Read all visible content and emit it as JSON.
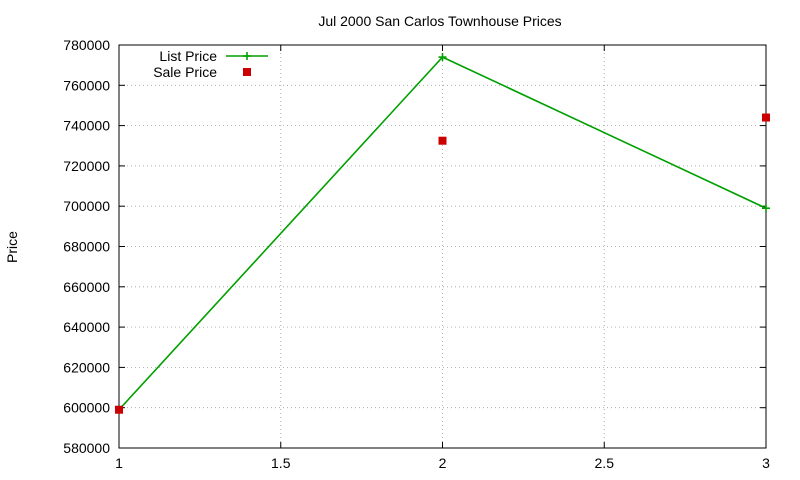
{
  "chart_data": {
    "type": "line",
    "title": "Jul 2000 San Carlos Townhouse Prices",
    "xlabel": "",
    "ylabel": "Price",
    "xlim": [
      1,
      3
    ],
    "ylim": [
      580000,
      780000
    ],
    "x_ticks": [
      1,
      1.5,
      2,
      2.5,
      3
    ],
    "x_tick_labels": [
      "1",
      "1.5",
      "2",
      "2.5",
      "3"
    ],
    "y_ticks": [
      580000,
      600000,
      620000,
      640000,
      660000,
      680000,
      700000,
      720000,
      740000,
      760000,
      780000
    ],
    "y_tick_labels": [
      "580000",
      "600000",
      "620000",
      "640000",
      "660000",
      "680000",
      "700000",
      "720000",
      "740000",
      "760000",
      "780000"
    ],
    "grid": true,
    "legend_position": "top-left",
    "series": [
      {
        "name": "List Price",
        "style": "line+cross",
        "color": "#00a000",
        "x": [
          1,
          2,
          3
        ],
        "values": [
          599000,
          774000,
          699000
        ]
      },
      {
        "name": "Sale Price",
        "style": "square",
        "color": "#cc0000",
        "x": [
          1,
          2,
          3
        ],
        "values": [
          599000,
          732500,
          744000
        ]
      }
    ]
  }
}
